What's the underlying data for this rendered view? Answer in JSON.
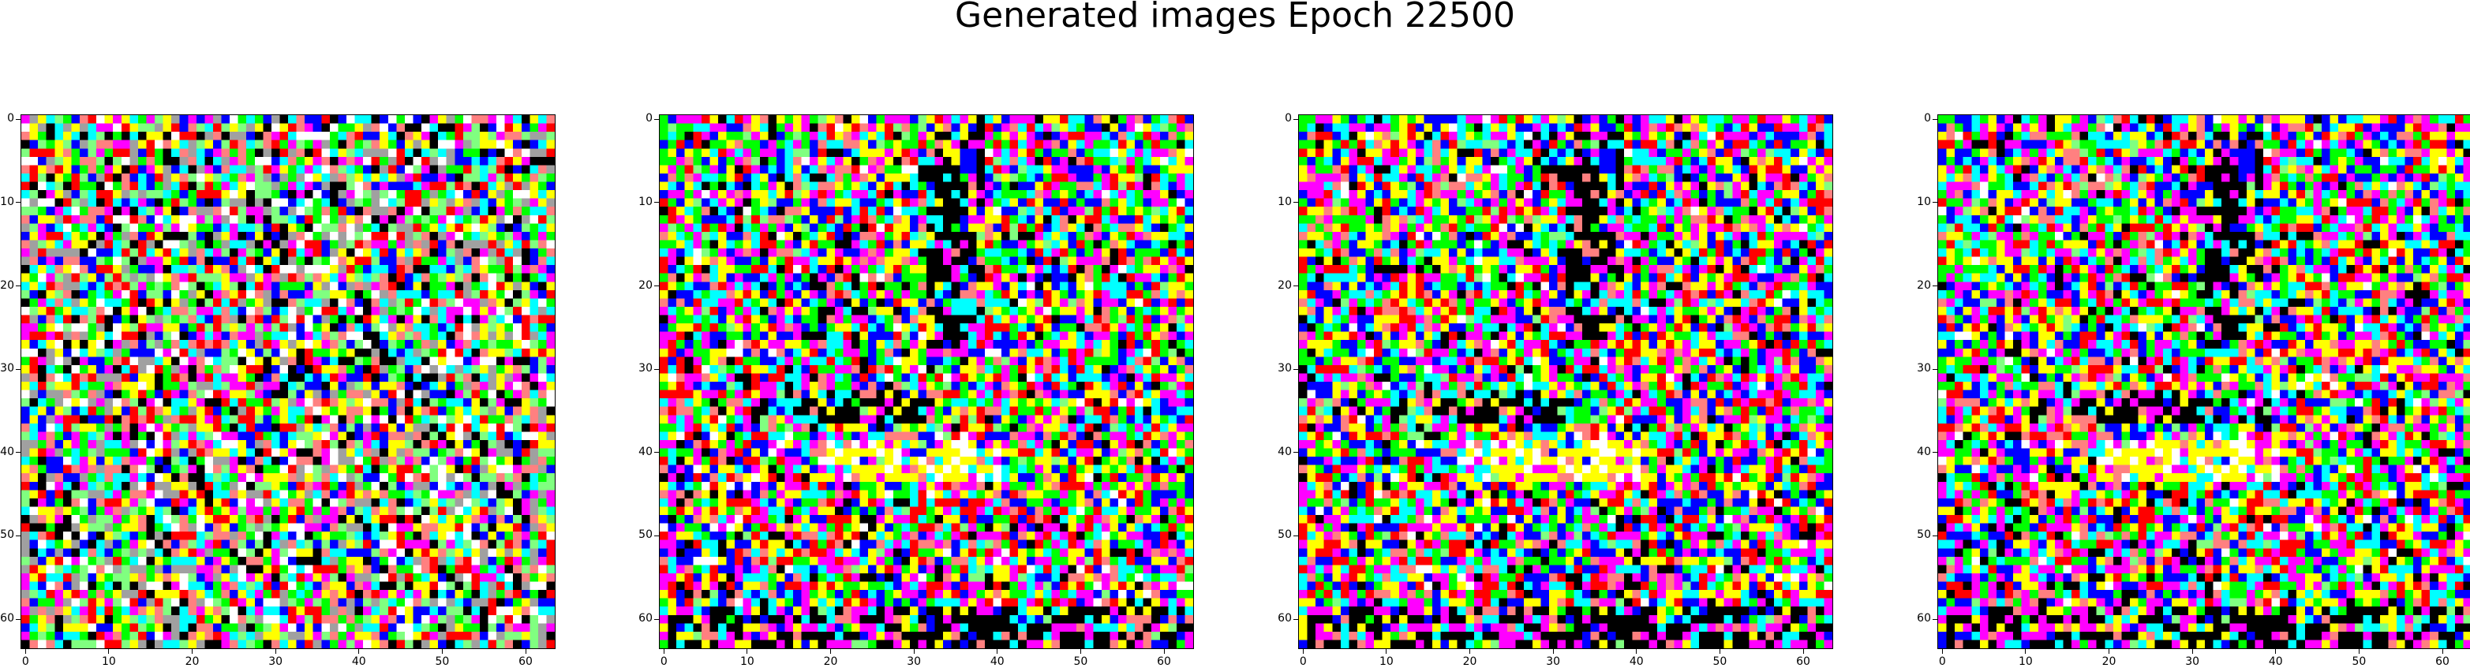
{
  "title": "Generated images Epoch 22500",
  "panels": [
    {
      "name": "generated-image-1",
      "variant": "noise"
    },
    {
      "name": "generated-image-2",
      "variant": "structured"
    },
    {
      "name": "generated-image-3",
      "variant": "structured"
    },
    {
      "name": "generated-image-4",
      "variant": "structured"
    }
  ],
  "axis": {
    "x_ticks": [
      "0",
      "10",
      "20",
      "30",
      "40",
      "50",
      "60"
    ],
    "y_ticks": [
      "0",
      "10",
      "20",
      "30",
      "40",
      "50",
      "60"
    ],
    "image_size": 64
  },
  "palette": [
    "#ffffff",
    "#000000",
    "#ff0000",
    "#00ff00",
    "#0000ff",
    "#ffff00",
    "#ff00ff",
    "#00ffff",
    "#ff8080",
    "#80ff80",
    "#a0a0a0"
  ]
}
